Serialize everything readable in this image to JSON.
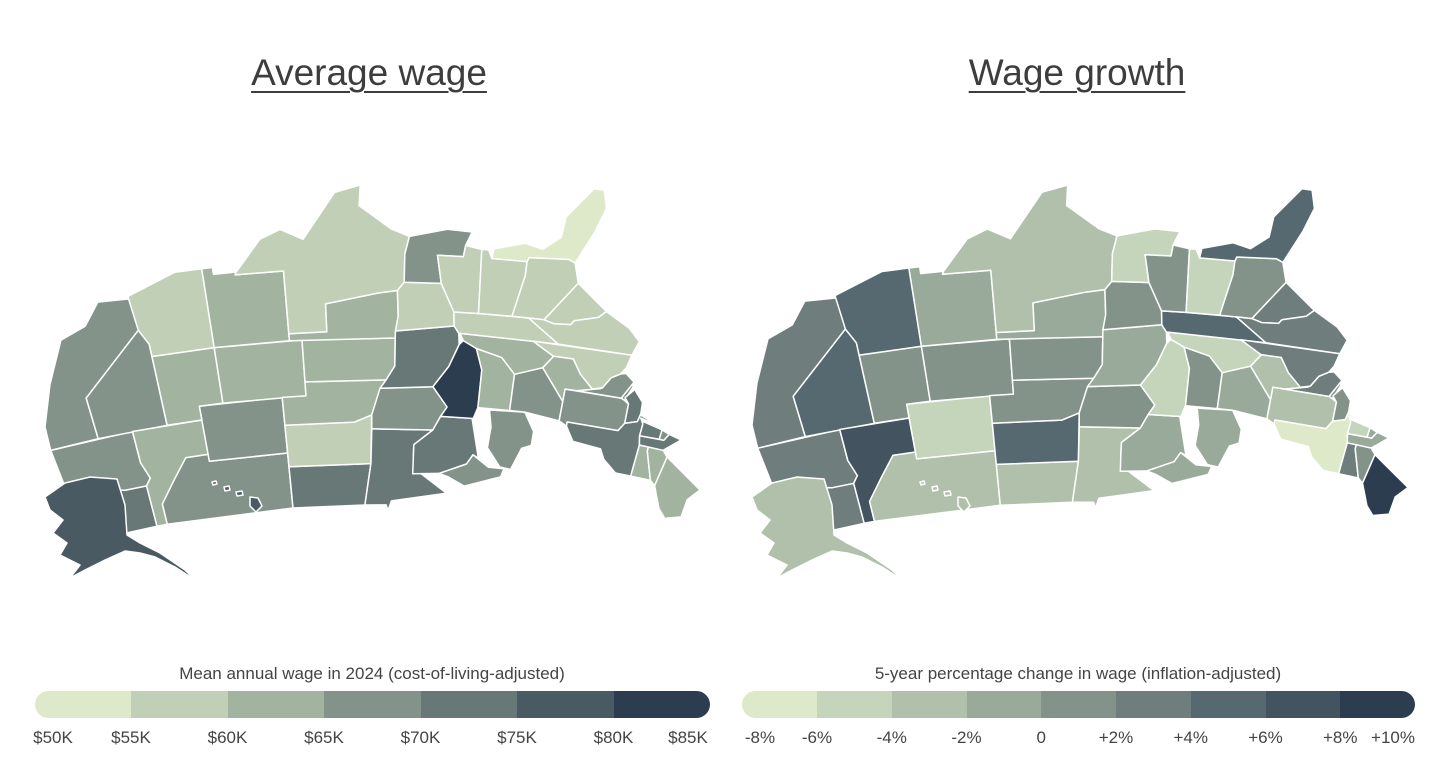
{
  "maps": [
    {
      "id": "wage",
      "title": "Average wage",
      "legend_title": "Mean annual wage in 2024 (cost-of-living-adjusted)",
      "legend_ticks": [
        "$50K",
        "$55K",
        "$60K",
        "$65K",
        "$70K",
        "$75K",
        "$80K",
        "$85K"
      ],
      "colors": [
        "#dde9c8",
        "#c0cfb6",
        "#a2b3a0",
        "#84938a",
        "#687877",
        "#4a5a62",
        "#2c3d50"
      ],
      "states": {
        "WA": 4,
        "OR": 3,
        "CA": 3,
        "NV": 3,
        "ID": 2,
        "MT": 3,
        "WY": 3,
        "UT": 2,
        "CO": 2,
        "AZ": 1,
        "NM": 2,
        "ND": 4,
        "SD": 1,
        "NE": 2,
        "KS": 2,
        "OK": 2,
        "TX": 1,
        "MN": 4,
        "IA": 3,
        "MO": 4,
        "AR": 1,
        "LA": 3,
        "WI": 4,
        "IL": 6,
        "MI": 3,
        "IN": 2,
        "OH": 3,
        "KY": 2,
        "TN": 1,
        "MS": 1,
        "AL": 1,
        "GA": 1,
        "FL": 0,
        "SC": 1,
        "NC": 1,
        "VA": 1,
        "WV": 2,
        "PA": 3,
        "NY": 4,
        "VT": 2,
        "NH": 2,
        "ME": 2,
        "MA": 4,
        "CT": 4,
        "RI": 3,
        "NJ": 4,
        "DE": 3,
        "MD": 3,
        "AK": 5,
        "HI": 5
      }
    },
    {
      "id": "growth",
      "title": "Wage growth",
      "legend_title": "5-year percentage change in wage (inflation-adjusted)",
      "legend_ticks": [
        "-8%",
        "-6%",
        "-4%",
        "-2%",
        "0",
        "+2%",
        "+4%",
        "+6%",
        "+8%",
        "+10%"
      ],
      "colors": [
        "#dde9c8",
        "#c5d5bb",
        "#b0c0aa",
        "#9aaa9a",
        "#84938a",
        "#6f7e7d",
        "#566870",
        "#435360",
        "#2c3d50"
      ],
      "states": {
        "WA": 5,
        "OR": 5,
        "CA": 5,
        "NV": 6,
        "ID": 7,
        "MT": 2,
        "WY": 1,
        "UT": 4,
        "CO": 4,
        "AZ": 6,
        "NM": 3,
        "ND": 2,
        "SD": 6,
        "NE": 4,
        "KS": 4,
        "OK": 3,
        "TX": 2,
        "MN": 2,
        "IA": 4,
        "MO": 3,
        "AR": 4,
        "LA": 1,
        "WI": 3,
        "IL": 1,
        "MI": 3,
        "IN": 4,
        "OH": 3,
        "KY": 1,
        "TN": 6,
        "MS": 4,
        "AL": 1,
        "GA": 4,
        "FL": 6,
        "SC": 5,
        "NC": 5,
        "VA": 5,
        "WV": 2,
        "PA": 2,
        "NY": 0,
        "VT": 5,
        "NH": 4,
        "ME": 8,
        "MA": 3,
        "CT": 1,
        "RI": 3,
        "NJ": 4,
        "DE": 4,
        "MD": 5,
        "AK": 2,
        "HI": 2
      }
    }
  ]
}
